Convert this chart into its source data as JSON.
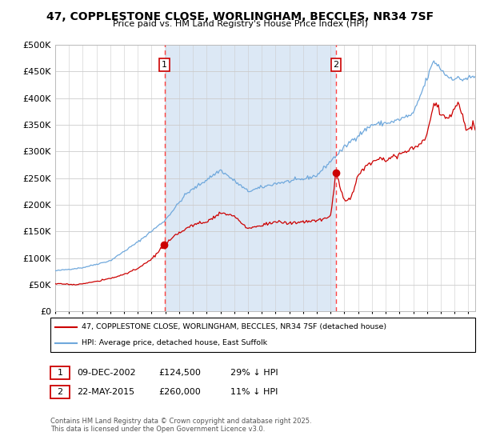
{
  "title": "47, COPPLESTONE CLOSE, WORLINGHAM, BECCLES, NR34 7SF",
  "subtitle": "Price paid vs. HM Land Registry's House Price Index (HPI)",
  "legend_line1": "47, COPPLESTONE CLOSE, WORLINGHAM, BECCLES, NR34 7SF (detached house)",
  "legend_line2": "HPI: Average price, detached house, East Suffolk",
  "annotation1_date": "09-DEC-2002",
  "annotation1_price": "£124,500",
  "annotation1_hpi": "29% ↓ HPI",
  "annotation2_date": "22-MAY-2015",
  "annotation2_price": "£260,000",
  "annotation2_hpi": "11% ↓ HPI",
  "sale1_year": 2002.94,
  "sale1_price": 124500,
  "sale2_year": 2015.39,
  "sale2_price": 260000,
  "hpi_color": "#6fa8dc",
  "price_color": "#cc0000",
  "shade_color": "#dce8f5",
  "vline_color": "#ff4444",
  "fig_bg": "#ffffff",
  "plot_bg": "#ffffff",
  "grid_color": "#cccccc",
  "ylabel_nums": [
    0,
    50000,
    100000,
    150000,
    200000,
    250000,
    300000,
    350000,
    400000,
    450000,
    500000
  ],
  "xmin": 1995,
  "xmax": 2025.5,
  "ymin": 0,
  "ymax": 500000,
  "footer": "Contains HM Land Registry data © Crown copyright and database right 2025.\nThis data is licensed under the Open Government Licence v3.0."
}
